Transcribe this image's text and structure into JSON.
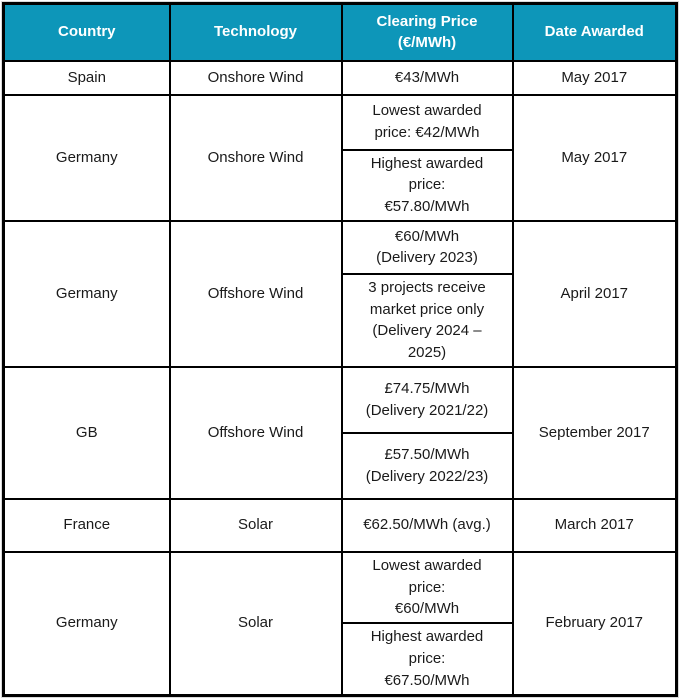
{
  "colors": {
    "header_bg": "#0d96b9",
    "header_text": "#ffffff",
    "border": "#000000"
  },
  "header": {
    "country": [
      "Country"
    ],
    "technology": [
      "Technology"
    ],
    "price": [
      "Clearing Price",
      "(€/MWh)"
    ],
    "date": [
      "Date Awarded"
    ]
  },
  "rows": [
    {
      "country": "Spain",
      "technology": "Onshore Wind",
      "date": "May 2017",
      "prices": [
        [
          "€43/MWh"
        ]
      ]
    },
    {
      "country": "Germany",
      "technology": "Onshore Wind",
      "date": "May 2017",
      "prices": [
        [
          "Lowest awarded",
          "price: €42/MWh"
        ],
        [
          "Highest awarded",
          "price:",
          "€57.80/MWh"
        ]
      ]
    },
    {
      "country": "Germany",
      "technology": "Offshore Wind",
      "date": "April 2017",
      "prices": [
        [
          "€60/MWh",
          "(Delivery 2023)"
        ],
        [
          "3 projects receive",
          "market price only",
          "(Delivery 2024 –",
          "2025)"
        ]
      ]
    },
    {
      "country": "GB",
      "technology": "Offshore Wind",
      "date": "September 2017",
      "prices": [
        [
          "£74.75/MWh",
          "(Delivery 2021/22)"
        ],
        [
          "£57.50/MWh",
          "(Delivery 2022/23)"
        ]
      ]
    },
    {
      "country": "France",
      "technology": "Solar",
      "date": "March 2017",
      "prices": [
        [
          "€62.50/MWh (avg.)"
        ]
      ]
    },
    {
      "country": "Germany",
      "technology": "Solar",
      "date": "February 2017",
      "prices": [
        [
          "Lowest awarded",
          "price:",
          "€60/MWh"
        ],
        [
          "Highest awarded",
          "price:",
          "€67.50/MWh"
        ]
      ]
    }
  ]
}
